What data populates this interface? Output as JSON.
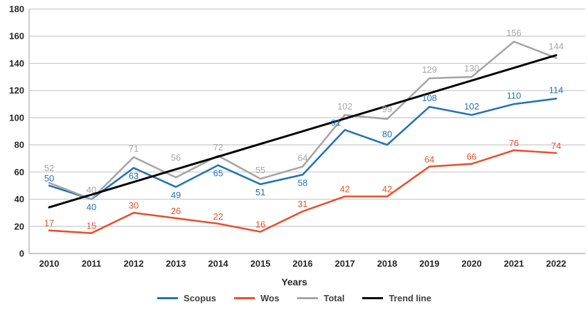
{
  "chart_data": {
    "type": "line",
    "title": "",
    "xlabel": "Years",
    "ylabel": "",
    "ylim": [
      0,
      180
    ],
    "ytick_step": 20,
    "grid": "horizontal",
    "legend_position": "bottom",
    "categories": [
      "2010",
      "2011",
      "2012",
      "2013",
      "2014",
      "2015",
      "2016",
      "2017",
      "2018",
      "2019",
      "2020",
      "2021",
      "2022"
    ],
    "series": [
      {
        "name": "Scopus",
        "color": "#2373B5",
        "values": [
          50,
          40,
          63,
          49,
          65,
          51,
          58,
          91,
          80,
          108,
          102,
          110,
          114
        ]
      },
      {
        "name": "Wos",
        "color": "#E8502D",
        "values": [
          17,
          15,
          30,
          26,
          22,
          16,
          31,
          42,
          42,
          64,
          66,
          76,
          74
        ]
      },
      {
        "name": "Total",
        "color": "#A6A6A6",
        "values": [
          52,
          40,
          71,
          56,
          72,
          55,
          64,
          102,
          99,
          129,
          130,
          156,
          144
        ]
      },
      {
        "name": "Trend line",
        "color": "#000000",
        "kind": "trend",
        "start": 34,
        "end": 146
      }
    ]
  },
  "colors": {
    "background": "#FFFFFF",
    "gridline": "#C9C9C9",
    "axis_line": "#BFBFBF",
    "tick_text": "#262626",
    "legend_text": "#404040"
  }
}
